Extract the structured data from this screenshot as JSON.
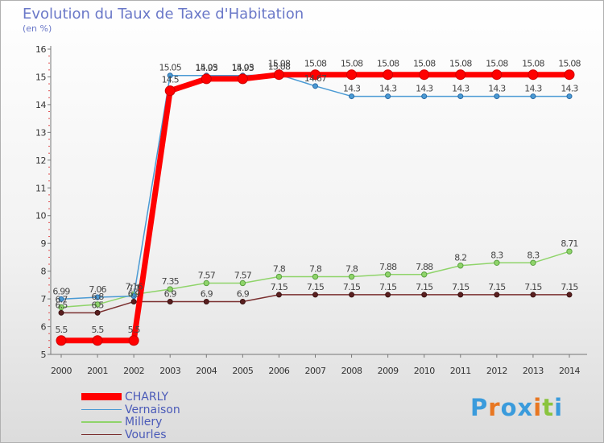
{
  "header": {
    "title": "Evolution du Taux de Taxe d'Habitation",
    "unit": "(en %)"
  },
  "brand": {
    "name": "Proxiti",
    "letters": [
      "P",
      "r",
      "o",
      "x",
      "i",
      "t",
      "i"
    ],
    "colors": [
      "#3a9bdc",
      "#e87722",
      "#3a9bdc",
      "#3a9bdc",
      "#e87722",
      "#8ac43f",
      "#3a9bdc"
    ]
  },
  "chart_data": {
    "type": "line",
    "title": "Evolution du Taux de Taxe d'Habitation",
    "ylabel": "(en %)",
    "xlabel": "",
    "x": [
      "2000",
      "2001",
      "2002",
      "2003",
      "2004",
      "2005",
      "2006",
      "2007",
      "2008",
      "2009",
      "2010",
      "2011",
      "2012",
      "2013",
      "2014"
    ],
    "ylim": [
      5,
      16
    ],
    "yticks": [
      "5",
      "6",
      "7",
      "8",
      "9",
      "10",
      "11",
      "12",
      "13",
      "14",
      "15",
      "16"
    ],
    "grid": false,
    "legend_position": "bottom-left",
    "series": [
      {
        "name": "Vernaison",
        "color": "#4a9ad4",
        "values": [
          6.99,
          7.06,
          7.1,
          15.05,
          15.05,
          15.05,
          15.08,
          14.67,
          14.3,
          14.3,
          14.3,
          14.3,
          14.3,
          14.3,
          14.3
        ],
        "labels": [
          "6.99",
          "7.06",
          "7.1",
          "15.05",
          "15.05",
          "15.05",
          "15.08",
          "14.67",
          "14.3",
          "14.3",
          "14.3",
          "14.3",
          "14.3",
          "14.3",
          "14.3"
        ]
      },
      {
        "name": "Millery",
        "color": "#8fd46a",
        "values": [
          6.7,
          6.8,
          7.16,
          7.35,
          7.57,
          7.57,
          7.8,
          7.8,
          7.8,
          7.88,
          7.88,
          8.2,
          8.3,
          8.3,
          8.71
        ],
        "labels": [
          "6.7",
          "6.8",
          "7.16",
          "7.35",
          "7.57",
          "7.57",
          "7.8",
          "7.8",
          "7.8",
          "7.88",
          "7.88",
          "8.2",
          "8.3",
          "8.3",
          "8.71"
        ]
      },
      {
        "name": "Vourles",
        "color": "#7a2f2f",
        "values": [
          6.5,
          6.5,
          6.9,
          6.9,
          6.9,
          6.9,
          7.15,
          7.15,
          7.15,
          7.15,
          7.15,
          7.15,
          7.15,
          7.15,
          7.15
        ],
        "labels": [
          "6.5",
          "6.5",
          "6.9",
          "6.9",
          "6.9",
          "6.9",
          "7.15",
          "7.15",
          "7.15",
          "7.15",
          "7.15",
          "7.15",
          "7.15",
          "7.15",
          "7.15"
        ]
      },
      {
        "name": "CHARLY",
        "color": "#ff0000",
        "values": [
          5.5,
          5.5,
          5.5,
          14.5,
          14.93,
          14.93,
          15.08,
          15.08,
          15.08,
          15.08,
          15.08,
          15.08,
          15.08,
          15.08,
          15.08
        ],
        "labels": [
          "5.5",
          "5.5",
          "5.5",
          "14.5",
          "14.93",
          "14.93",
          "15.08",
          "15.08",
          "15.08",
          "15.08",
          "15.08",
          "15.08",
          "15.08",
          "15.08",
          "15.08"
        ]
      }
    ],
    "legend": [
      "CHARLY",
      "Vernaison",
      "Millery",
      "Vourles"
    ]
  }
}
